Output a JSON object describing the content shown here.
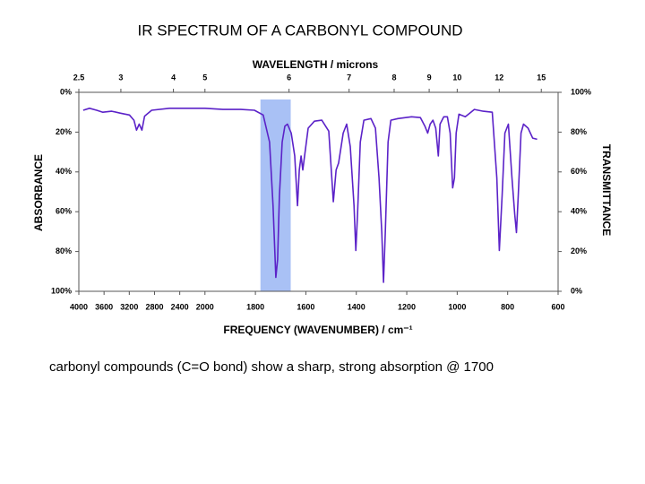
{
  "caption": "carbonyl compounds  (C=O bond) show a sharp, strong absorption @ 1700",
  "chart_data": {
    "type": "line",
    "title": "IR SPECTRUM OF A CARBONYL COMPOUND",
    "x_label": "FREQUENCY (WAVENUMBER) / cm⁻¹",
    "x2_label": "WAVELENGTH / microns",
    "y_label": "ABSORBANCE",
    "y2_label": "TRANSMITTANCE",
    "xlim": [
      4000,
      600
    ],
    "xscale_break": 2000,
    "xticks": [
      4000,
      3600,
      3200,
      2800,
      2400,
      2000,
      1800,
      1600,
      1400,
      1200,
      1000,
      800,
      600
    ],
    "x2ticks": [
      2.5,
      3,
      4,
      5,
      6,
      7,
      8,
      9,
      10,
      12,
      15
    ],
    "ylim": [
      100,
      0
    ],
    "yticks": [
      {
        "value": 0,
        "label": "0%"
      },
      {
        "value": 20,
        "label": "20%"
      },
      {
        "value": 40,
        "label": "40%"
      },
      {
        "value": 60,
        "label": "60%"
      },
      {
        "value": 80,
        "label": "80%"
      },
      {
        "value": 100,
        "label": "100%"
      }
    ],
    "y2lim": [
      0,
      100
    ],
    "y2ticks": [
      {
        "value": 100,
        "label": "100%"
      },
      {
        "value": 80,
        "label": "80%"
      },
      {
        "value": 60,
        "label": "60%"
      },
      {
        "value": 40,
        "label": "40%"
      },
      {
        "value": 20,
        "label": "20%"
      },
      {
        "value": 0,
        "label": "0%"
      }
    ],
    "highlight": {
      "range": [
        1780,
        1660
      ],
      "color": "#a9c1f5"
    },
    "x": [
      3930,
      3831,
      3718,
      3620,
      3479,
      3338,
      3197,
      3127,
      3085,
      3042,
      3000,
      2958,
      2845,
      2563,
      2282,
      2000,
      1929,
      1858,
      1804,
      1769,
      1744,
      1730,
      1719,
      1712,
      1705,
      1694,
      1683,
      1673,
      1658,
      1644,
      1633,
      1626,
      1619,
      1612,
      1605,
      1591,
      1566,
      1537,
      1509,
      1491,
      1480,
      1470,
      1452,
      1438,
      1424,
      1409,
      1402,
      1395,
      1384,
      1370,
      1342,
      1324,
      1310,
      1299,
      1292,
      1285,
      1274,
      1263,
      1235,
      1181,
      1146,
      1128,
      1117,
      1107,
      1096,
      1085,
      1075,
      1068,
      1053,
      1039,
      1028,
      1018,
      1011,
      1004,
      993,
      968,
      932,
      897,
      861,
      843,
      833,
      822,
      811,
      797,
      783,
      772,
      765,
      758,
      747,
      737,
      719,
      701,
      683
    ],
    "series": [
      {
        "color": "#5b22c8",
        "axis": "y2",
        "values": [
          91,
          92,
          91,
          90,
          90.5,
          89.5,
          88.6,
          86,
          81,
          84,
          81,
          88,
          91,
          92,
          92,
          92,
          91.4,
          91.4,
          91,
          88.6,
          75,
          43,
          7,
          16,
          48,
          75,
          83,
          84,
          79.5,
          68,
          43,
          61,
          68,
          61,
          68,
          82,
          85.5,
          86,
          80.5,
          45,
          61,
          64.5,
          79.5,
          84,
          72.7,
          43,
          20.5,
          38.6,
          75,
          86,
          86.8,
          82,
          57,
          29.5,
          4.5,
          29.5,
          75,
          86,
          86.8,
          87.7,
          87.3,
          83,
          79.5,
          84,
          86,
          82,
          68,
          84,
          87.7,
          87.7,
          79.5,
          52,
          57,
          79.5,
          89,
          87.7,
          91.4,
          90.5,
          90,
          57,
          20.5,
          48,
          79.5,
          84,
          57,
          38.6,
          29.5,
          48,
          79.5,
          84,
          82,
          77,
          76.4
        ]
      }
    ]
  }
}
